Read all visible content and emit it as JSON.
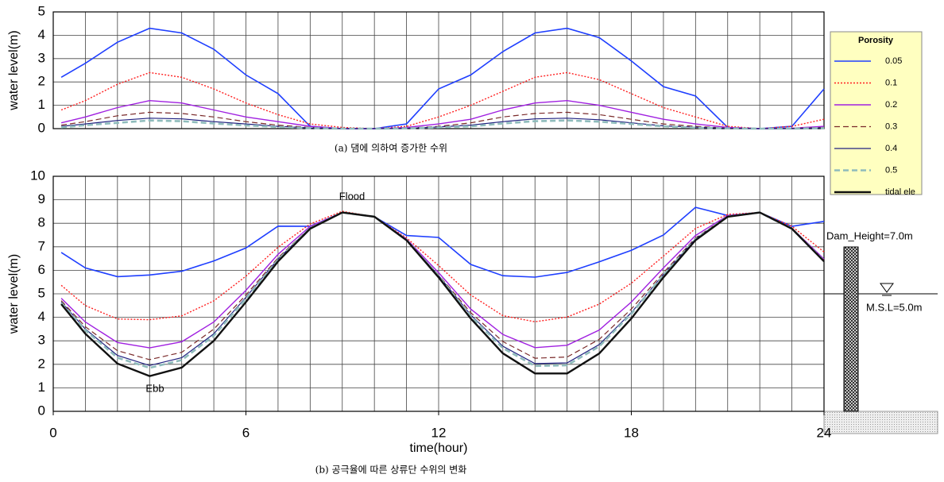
{
  "chart_data": [
    {
      "type": "line",
      "ylabel": "water level(m)",
      "caption": "(a) 댐에 의하여 증가한 수위",
      "x": [
        0.25,
        1,
        2,
        3,
        4,
        5,
        6,
        7,
        8,
        9,
        10,
        11,
        12,
        13,
        14,
        15,
        16,
        17,
        18,
        19,
        20,
        21,
        22,
        23,
        24
      ],
      "xlim": [
        0,
        24
      ],
      "ylim": [
        0,
        5
      ],
      "yticks": [
        0,
        1,
        2,
        3,
        4,
        5
      ],
      "grid": true,
      "series": [
        {
          "color": "#1f3fff",
          "style": "solid",
          "width": 1.6,
          "values": [
            2.2,
            2.8,
            3.7,
            4.3,
            4.1,
            3.4,
            2.3,
            1.5,
            0.1,
            0,
            0,
            0.2,
            1.7,
            2.3,
            3.3,
            4.1,
            4.3,
            3.9,
            2.9,
            1.8,
            1.4,
            0.05,
            0,
            0.1,
            1.7
          ]
        },
        {
          "color": "#ff2020",
          "style": "dotted",
          "width": 1.4,
          "values": [
            0.8,
            1.2,
            1.9,
            2.4,
            2.2,
            1.7,
            1.1,
            0.6,
            0.2,
            0.05,
            0,
            0.1,
            0.5,
            1.0,
            1.6,
            2.2,
            2.4,
            2.1,
            1.5,
            0.9,
            0.5,
            0.1,
            0,
            0.1,
            0.4
          ]
        },
        {
          "color": "#a020e0",
          "style": "solid",
          "width": 1.4,
          "values": [
            0.25,
            0.5,
            0.9,
            1.2,
            1.1,
            0.8,
            0.5,
            0.3,
            0.1,
            0,
            0,
            0.05,
            0.2,
            0.4,
            0.8,
            1.1,
            1.2,
            1.0,
            0.7,
            0.4,
            0.2,
            0.05,
            0,
            0.02,
            0.1
          ]
        },
        {
          "color": "#7a2a2a",
          "style": "dashed",
          "width": 1.2,
          "values": [
            0.15,
            0.3,
            0.55,
            0.7,
            0.65,
            0.5,
            0.3,
            0.15,
            0.05,
            0,
            0,
            0.02,
            0.1,
            0.25,
            0.5,
            0.65,
            0.7,
            0.6,
            0.4,
            0.2,
            0.1,
            0.02,
            0,
            0.01,
            0.05
          ]
        },
        {
          "color": "#202080",
          "style": "solid",
          "width": 1.2,
          "values": [
            0.1,
            0.2,
            0.35,
            0.45,
            0.42,
            0.3,
            0.2,
            0.1,
            0.03,
            0,
            0,
            0.01,
            0.07,
            0.15,
            0.3,
            0.42,
            0.45,
            0.38,
            0.25,
            0.12,
            0.06,
            0.01,
            0,
            0,
            0.03
          ]
        },
        {
          "color": "#8fbcbc",
          "style": "dashed",
          "width": 2.6,
          "values": [
            0.05,
            0.15,
            0.25,
            0.35,
            0.32,
            0.22,
            0.14,
            0.07,
            0.02,
            0,
            0,
            0.01,
            0.05,
            0.1,
            0.22,
            0.32,
            0.35,
            0.3,
            0.2,
            0.1,
            0.04,
            0.01,
            0,
            0,
            0.02
          ]
        }
      ]
    },
    {
      "type": "line",
      "ylabel": "water level(m)",
      "xlabel": "time(hour)",
      "caption": "(b) 공극율에 따른 상류단 수위의 변화",
      "legend_title": "Porosity",
      "legend": "right",
      "annotations": [
        "Flood",
        "Ebb",
        "Dam_Height=7.0m",
        "M.S.L=5.0m"
      ],
      "x": [
        0.25,
        1,
        2,
        3,
        4,
        5,
        6,
        7,
        8,
        9,
        10,
        11,
        12,
        13,
        14,
        15,
        16,
        17,
        18,
        19,
        20,
        21,
        22,
        23,
        24
      ],
      "xlim": [
        0,
        24
      ],
      "xticks": [
        0,
        6,
        12,
        18,
        24
      ],
      "ylim": [
        0,
        10
      ],
      "yticks": [
        0,
        1,
        2,
        3,
        4,
        5,
        6,
        7,
        8,
        9,
        10
      ],
      "grid": true,
      "series": [
        {
          "name": "0.05",
          "color": "#1f3fff",
          "style": "solid",
          "width": 1.6,
          "values": [
            6.76,
            6.1,
            5.73,
            5.8,
            5.96,
            6.4,
            6.95,
            7.88,
            7.87,
            8.46,
            8.28,
            7.48,
            7.4,
            6.25,
            5.77,
            5.71,
            5.91,
            6.36,
            6.85,
            7.5,
            8.68,
            8.33,
            8.46,
            7.87,
            8.08
          ]
        },
        {
          "name": "0.1",
          "color": "#ff2020",
          "style": "dotted",
          "width": 1.4,
          "values": [
            5.36,
            4.5,
            3.93,
            3.9,
            4.06,
            4.7,
            5.75,
            6.98,
            7.97,
            8.51,
            8.28,
            7.38,
            6.2,
            4.95,
            4.07,
            3.81,
            4.01,
            4.56,
            5.45,
            6.6,
            7.78,
            8.38,
            8.46,
            7.87,
            6.78
          ]
        },
        {
          "name": "0.2",
          "color": "#a020e0",
          "style": "solid",
          "width": 1.4,
          "values": [
            4.81,
            3.8,
            2.93,
            2.7,
            2.96,
            3.8,
            5.15,
            6.68,
            7.87,
            8.46,
            8.28,
            7.33,
            5.9,
            4.35,
            3.27,
            2.71,
            2.81,
            3.46,
            4.65,
            6.1,
            7.48,
            8.33,
            8.46,
            7.79,
            6.48
          ]
        },
        {
          "name": "0.3",
          "color": "#7a2a2a",
          "style": "dashed",
          "width": 1.2,
          "values": [
            4.71,
            3.6,
            2.58,
            2.2,
            2.51,
            3.5,
            4.95,
            6.53,
            7.82,
            8.46,
            8.28,
            7.3,
            5.8,
            4.2,
            2.97,
            2.26,
            2.31,
            3.06,
            4.35,
            5.9,
            7.38,
            8.3,
            8.46,
            7.78,
            6.43
          ]
        },
        {
          "name": "0.4",
          "color": "#202080",
          "style": "solid",
          "width": 1.2,
          "values": [
            4.66,
            3.5,
            2.38,
            1.95,
            2.28,
            3.3,
            4.85,
            6.48,
            7.8,
            8.46,
            8.28,
            7.29,
            5.77,
            4.1,
            2.77,
            2.03,
            2.06,
            2.84,
            4.2,
            5.82,
            7.34,
            8.29,
            8.46,
            7.77,
            6.41
          ]
        },
        {
          "name": "0.5",
          "color": "#8fbcbc",
          "style": "dashed",
          "width": 2.6,
          "values": [
            4.61,
            3.45,
            2.28,
            1.85,
            2.18,
            3.22,
            4.79,
            6.45,
            7.79,
            8.46,
            8.28,
            7.29,
            5.75,
            4.05,
            2.69,
            1.93,
            1.96,
            2.76,
            4.15,
            5.8,
            7.32,
            8.29,
            8.46,
            7.77,
            6.4
          ]
        },
        {
          "name": "tidal ele",
          "color": "#111111",
          "style": "solid",
          "width": 2.4,
          "values": [
            4.56,
            3.3,
            2.03,
            1.5,
            1.86,
            3.0,
            4.65,
            6.38,
            7.77,
            8.46,
            8.28,
            7.28,
            5.7,
            3.95,
            2.47,
            1.61,
            1.61,
            2.46,
            3.95,
            5.7,
            7.28,
            8.28,
            8.46,
            7.77,
            6.38
          ]
        }
      ]
    }
  ]
}
